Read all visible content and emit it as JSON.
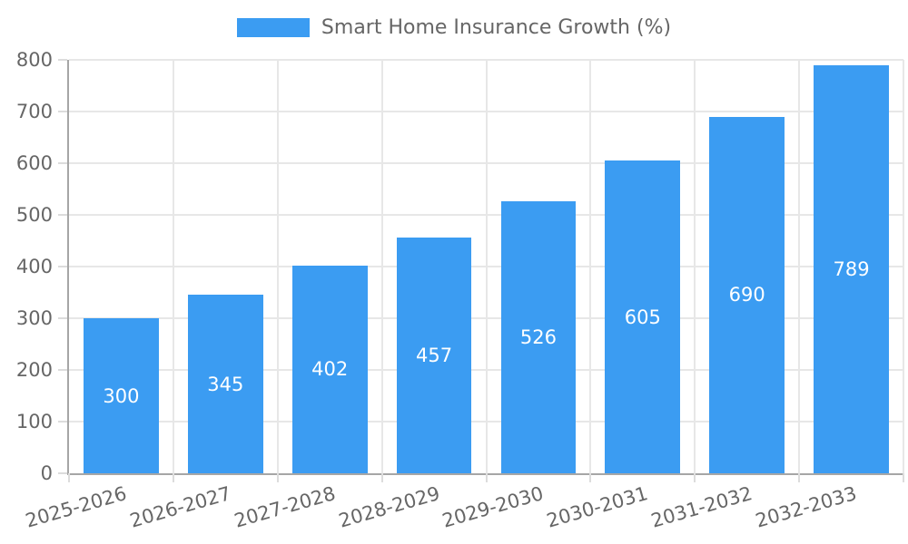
{
  "legend": {
    "label": "Smart Home Insurance Growth (%)"
  },
  "chart_data": {
    "type": "bar",
    "title": "Smart Home Insurance Growth (%)",
    "legend_entries": [
      "Smart Home Insurance Growth (%)"
    ],
    "legend_position": "top",
    "categories": [
      "2025-2026",
      "2026-2027",
      "2027-2028",
      "2028-2029",
      "2029-2030",
      "2030-2031",
      "2031-2032",
      "2032-2033"
    ],
    "values": [
      300,
      345,
      402,
      457,
      526,
      605,
      690,
      789
    ],
    "value_labels_shown": true,
    "xlabel": "",
    "ylabel": "",
    "ylim": [
      0,
      800
    ],
    "yticks": [
      0,
      100,
      200,
      300,
      400,
      500,
      600,
      700,
      800
    ],
    "grid": true,
    "x_tick_rotation_deg": -16,
    "colors": {
      "bar": "#3b9cf2",
      "value_label": "#ffffff",
      "axis_text": "#666666",
      "gridline": "#e7e7e7",
      "axis_line": "#a6a6a6",
      "tick_mark": "#dcdcdc"
    }
  }
}
